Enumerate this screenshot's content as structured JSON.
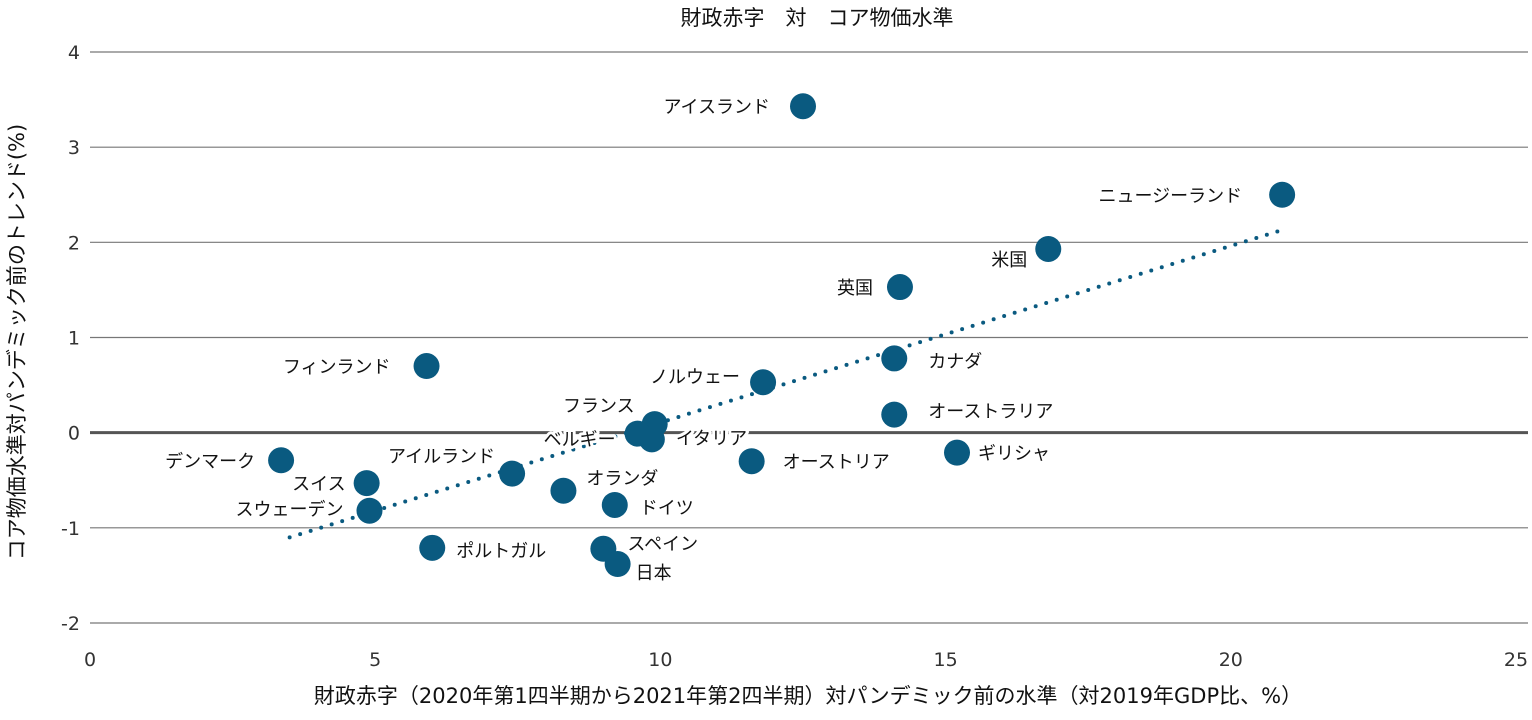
{
  "chart_data": {
    "type": "scatter",
    "title": "財政赤字　対　コア物価水準",
    "xlabel": "財政赤字（2020年第1四半期から2021年第2四半期）対パンデミック前の水準（対2019年GDP比、%）",
    "ylabel": "コア物価水準対パンデミック前のトレンド(%)",
    "xlim": [
      0,
      25
    ],
    "ylim": [
      -2,
      4
    ],
    "xticks": [
      "0",
      "5",
      "10",
      "15",
      "20",
      "25"
    ],
    "yticks": [
      "-2",
      "-1",
      "0",
      "1",
      "2",
      "3",
      "4"
    ],
    "grid": "horizontal",
    "colors": {
      "points": "#0a5a80",
      "trend": "#0a5a80",
      "grid": "#777777",
      "zero_line": "#555555"
    },
    "points": [
      {
        "label": "アイスランド",
        "x": 12.5,
        "y": 3.43
      },
      {
        "label": "ニュージーランド",
        "x": 20.9,
        "y": 2.5
      },
      {
        "label": "米国",
        "x": 16.8,
        "y": 1.93
      },
      {
        "label": "英国",
        "x": 14.2,
        "y": 1.53
      },
      {
        "label": "カナダ",
        "x": 14.1,
        "y": 0.78
      },
      {
        "label": "オーストラリア",
        "x": 14.1,
        "y": 0.19
      },
      {
        "label": "ギリシャ",
        "x": 15.2,
        "y": -0.21
      },
      {
        "label": "ノルウェー",
        "x": 11.8,
        "y": 0.53
      },
      {
        "label": "フィンランド",
        "x": 5.9,
        "y": 0.7
      },
      {
        "label": "フランス",
        "x": 9.9,
        "y": 0.09
      },
      {
        "label": "ベルギー",
        "x": 9.6,
        "y": -0.01
      },
      {
        "label": "イタリア",
        "x": 9.85,
        "y": -0.07
      },
      {
        "label": "オーストリア",
        "x": 11.6,
        "y": -0.3
      },
      {
        "label": "デンマーク",
        "x": 3.35,
        "y": -0.29
      },
      {
        "label": "スイス",
        "x": 4.85,
        "y": -0.53
      },
      {
        "label": "スウェーデン",
        "x": 4.9,
        "y": -0.82
      },
      {
        "label": "アイルランド",
        "x": 7.4,
        "y": -0.43
      },
      {
        "label": "オランダ",
        "x": 8.3,
        "y": -0.61
      },
      {
        "label": "ドイツ",
        "x": 9.2,
        "y": -0.76
      },
      {
        "label": "ポルトガル",
        "x": 6.0,
        "y": -1.21
      },
      {
        "label": "スペイン",
        "x": 9.0,
        "y": -1.22
      },
      {
        "label": "日本",
        "x": 9.25,
        "y": -1.38
      }
    ],
    "trendline": {
      "style": "dotted",
      "x": [
        3.5,
        20.9
      ],
      "y": [
        -1.1,
        2.13
      ]
    }
  }
}
